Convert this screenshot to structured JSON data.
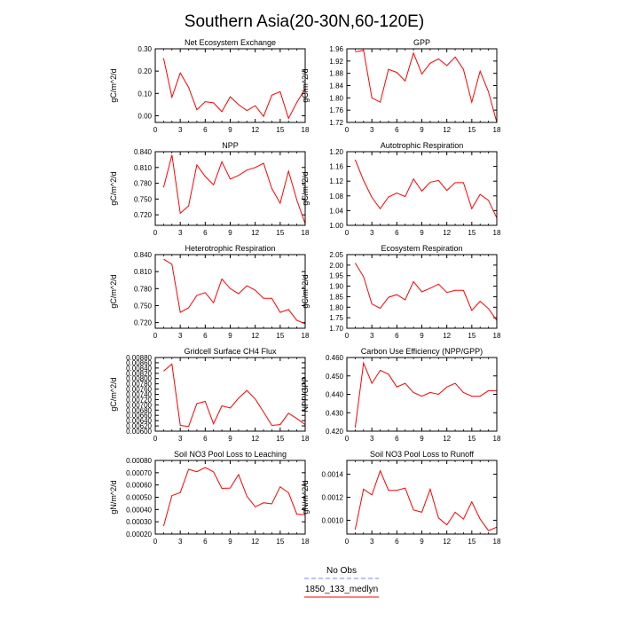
{
  "figure": {
    "title": "Southern Asia(20-30N,60-120E)",
    "legend": [
      {
        "label": "No Obs",
        "color": "#8080ff",
        "dash": true
      },
      {
        "label": "1850_133_medlyn",
        "color": "#ff0000",
        "dash": false
      }
    ]
  },
  "chart_data": [
    {
      "type": "line",
      "title": "Net Ecosystem Exchange",
      "ylabel": "gC/m^2/d",
      "xlim": [
        0,
        18
      ],
      "ylim": [
        -0.03,
        0.3
      ],
      "xticks": [
        0,
        3,
        6,
        9,
        12,
        15,
        18
      ],
      "yticks": [
        0.0,
        0.1,
        0.2,
        0.3
      ],
      "ytick_labels": [
        "0.00",
        "0.10",
        "0.20",
        "0.30"
      ],
      "x": [
        1,
        2,
        3,
        4,
        5,
        6,
        7,
        8,
        9,
        10,
        11,
        12,
        13,
        14,
        15,
        16,
        17,
        18
      ],
      "series": [
        {
          "color": "#ff0000",
          "values": [
            0.258,
            0.083,
            0.192,
            0.127,
            0.027,
            0.063,
            0.058,
            0.018,
            0.085,
            0.05,
            0.023,
            0.045,
            -0.003,
            0.092,
            0.108,
            -0.012,
            0.06,
            0.12
          ]
        }
      ]
    },
    {
      "type": "line",
      "title": "GPP",
      "ylabel": "gC/m^2/d",
      "xlim": [
        0,
        18
      ],
      "ylim": [
        1.72,
        1.96
      ],
      "xticks": [
        0,
        3,
        6,
        9,
        12,
        15,
        18
      ],
      "yticks": [
        1.72,
        1.76,
        1.8,
        1.84,
        1.88,
        1.92,
        1.96
      ],
      "ytick_labels": [
        "1.72",
        "1.76",
        "1.80",
        "1.84",
        "1.88",
        "1.92",
        "1.96"
      ],
      "x": [
        1,
        2,
        3,
        4,
        5,
        6,
        7,
        8,
        9,
        10,
        11,
        12,
        13,
        14,
        15,
        16,
        17,
        18
      ],
      "series": [
        {
          "color": "#ff0000",
          "values": [
            1.95,
            1.955,
            1.8,
            1.786,
            1.893,
            1.883,
            1.855,
            1.946,
            1.878,
            1.913,
            1.927,
            1.905,
            1.933,
            1.893,
            1.786,
            1.887,
            1.82,
            1.72
          ]
        }
      ]
    },
    {
      "type": "line",
      "title": "NPP",
      "ylabel": "gC/m^2/d",
      "xlim": [
        0,
        18
      ],
      "ylim": [
        0.7,
        0.84
      ],
      "xticks": [
        0,
        3,
        6,
        9,
        12,
        15,
        18
      ],
      "yticks": [
        0.72,
        0.75,
        0.78,
        0.81,
        0.84
      ],
      "ytick_labels": [
        "0.720",
        "0.750",
        "0.780",
        "0.810",
        "0.840"
      ],
      "x": [
        1,
        2,
        3,
        4,
        5,
        6,
        7,
        8,
        9,
        10,
        11,
        12,
        13,
        14,
        15,
        16,
        17,
        18
      ],
      "series": [
        {
          "color": "#ff0000",
          "values": [
            0.772,
            0.834,
            0.723,
            0.737,
            0.815,
            0.793,
            0.777,
            0.821,
            0.788,
            0.795,
            0.805,
            0.81,
            0.818,
            0.77,
            0.742,
            0.803,
            0.748,
            0.703
          ]
        }
      ]
    },
    {
      "type": "line",
      "title": "Autotrophic Respiration",
      "ylabel": "gC/m^2/d",
      "xlim": [
        0,
        18
      ],
      "ylim": [
        1.0,
        1.2
      ],
      "xticks": [
        0,
        3,
        6,
        9,
        12,
        15,
        18
      ],
      "yticks": [
        1.0,
        1.04,
        1.08,
        1.12,
        1.16,
        1.2
      ],
      "ytick_labels": [
        "1.00",
        "1.04",
        "1.08",
        "1.12",
        "1.16",
        "1.20"
      ],
      "x": [
        1,
        2,
        3,
        4,
        5,
        6,
        7,
        8,
        9,
        10,
        11,
        12,
        13,
        14,
        15,
        16,
        17,
        18
      ],
      "series": [
        {
          "color": "#ff0000",
          "values": [
            1.178,
            1.122,
            1.076,
            1.045,
            1.077,
            1.088,
            1.078,
            1.126,
            1.093,
            1.117,
            1.122,
            1.095,
            1.116,
            1.116,
            1.045,
            1.084,
            1.068,
            1.02
          ]
        }
      ]
    },
    {
      "type": "line",
      "title": "Heterotrophic Respiration",
      "ylabel": "gC/m^2/d",
      "xlim": [
        0,
        18
      ],
      "ylim": [
        0.71,
        0.84
      ],
      "xticks": [
        0,
        3,
        6,
        9,
        12,
        15,
        18
      ],
      "yticks": [
        0.72,
        0.75,
        0.78,
        0.81,
        0.84
      ],
      "ytick_labels": [
        "0.720",
        "0.750",
        "0.780",
        "0.810",
        "0.840"
      ],
      "x": [
        1,
        2,
        3,
        4,
        5,
        6,
        7,
        8,
        9,
        10,
        11,
        12,
        13,
        14,
        15,
        16,
        17,
        18
      ],
      "series": [
        {
          "color": "#ff0000",
          "values": [
            0.832,
            0.823,
            0.738,
            0.746,
            0.768,
            0.773,
            0.755,
            0.797,
            0.78,
            0.771,
            0.785,
            0.777,
            0.763,
            0.763,
            0.738,
            0.743,
            0.724,
            0.718
          ]
        }
      ]
    },
    {
      "type": "line",
      "title": "Ecosystem Respiration",
      "ylabel": "gC/m^2/d",
      "xlim": [
        0,
        18
      ],
      "ylim": [
        1.7,
        2.05
      ],
      "xticks": [
        0,
        3,
        6,
        9,
        12,
        15,
        18
      ],
      "yticks": [
        1.7,
        1.75,
        1.8,
        1.85,
        1.9,
        1.95,
        2.0,
        2.05
      ],
      "ytick_labels": [
        "1.70",
        "1.75",
        "1.80",
        "1.85",
        "1.90",
        "1.95",
        "2.00",
        "2.05"
      ],
      "x": [
        1,
        2,
        3,
        4,
        5,
        6,
        7,
        8,
        9,
        10,
        11,
        12,
        13,
        14,
        15,
        16,
        17,
        18
      ],
      "series": [
        {
          "color": "#ff0000",
          "values": [
            2.01,
            1.945,
            1.815,
            1.795,
            1.847,
            1.86,
            1.835,
            1.922,
            1.873,
            1.89,
            1.91,
            1.87,
            1.88,
            1.88,
            1.785,
            1.828,
            1.793,
            1.737
          ]
        }
      ]
    },
    {
      "type": "line",
      "title": "Gridcell Surface CH4 Flux",
      "ylabel": "gC/m^2/d",
      "xlim": [
        0,
        18
      ],
      "ylim": [
        0.006,
        0.0088
      ],
      "xticks": [
        0,
        3,
        6,
        9,
        12,
        15,
        18
      ],
      "yticks": [
        0.006,
        0.0062,
        0.0064,
        0.0066,
        0.0068,
        0.007,
        0.0072,
        0.0074,
        0.0076,
        0.0078,
        0.008,
        0.0082,
        0.0084,
        0.0086,
        0.0088
      ],
      "ytick_labels": [
        "0.00600",
        "0.00620",
        "0.00640",
        "0.00660",
        "0.00680",
        "0.00700",
        "0.00720",
        "0.00740",
        "0.00760",
        "0.00780",
        "0.00800",
        "0.00820",
        "0.00840",
        "0.00860",
        "0.00880"
      ],
      "x": [
        1,
        2,
        3,
        4,
        5,
        6,
        7,
        8,
        9,
        10,
        11,
        12,
        13,
        14,
        15,
        16,
        17,
        18
      ],
      "series": [
        {
          "color": "#ff0000",
          "values": [
            0.00828,
            0.00855,
            0.00622,
            0.00618,
            0.00705,
            0.00713,
            0.00628,
            0.00696,
            0.00688,
            0.00725,
            0.00755,
            0.00722,
            0.00673,
            0.00622,
            0.00625,
            0.00668,
            0.00648,
            0.00625
          ]
        }
      ]
    },
    {
      "type": "line",
      "title": "Carbon Use Efficiency (NPP/GPP)",
      "ylabel": "NPP/GPP",
      "xlim": [
        0,
        18
      ],
      "ylim": [
        0.42,
        0.46
      ],
      "xticks": [
        0,
        3,
        6,
        9,
        12,
        15,
        18
      ],
      "yticks": [
        0.42,
        0.43,
        0.44,
        0.45,
        0.46
      ],
      "ytick_labels": [
        "0.420",
        "0.430",
        "0.440",
        "0.450",
        "0.460"
      ],
      "x": [
        1,
        2,
        3,
        4,
        5,
        6,
        7,
        8,
        9,
        10,
        11,
        12,
        13,
        14,
        15,
        16,
        17,
        18
      ],
      "series": [
        {
          "color": "#ff0000",
          "values": [
            0.422,
            0.457,
            0.446,
            0.453,
            0.451,
            0.444,
            0.446,
            0.441,
            0.439,
            0.441,
            0.44,
            0.444,
            0.446,
            0.441,
            0.439,
            0.439,
            0.442,
            0.442
          ]
        }
      ]
    },
    {
      "type": "line",
      "title": "Soil NO3 Pool Loss to Leaching",
      "ylabel": "gN/m^2/d",
      "xlim": [
        0,
        18
      ],
      "ylim": [
        0.0002,
        0.0008
      ],
      "xticks": [
        0,
        3,
        6,
        9,
        12,
        15,
        18
      ],
      "yticks": [
        0.0002,
        0.0003,
        0.0004,
        0.0005,
        0.0006,
        0.0007,
        0.0008
      ],
      "ytick_labels": [
        "0.00020",
        "0.00030",
        "0.00040",
        "0.00050",
        "0.00060",
        "0.00070",
        "0.00080"
      ],
      "x": [
        1,
        2,
        3,
        4,
        5,
        6,
        7,
        8,
        9,
        10,
        11,
        12,
        13,
        14,
        15,
        16,
        17,
        18
      ],
      "series": [
        {
          "color": "#ff0000",
          "values": [
            0.000265,
            0.000513,
            0.000538,
            0.000728,
            0.000708,
            0.000743,
            0.000707,
            0.000572,
            0.000575,
            0.000685,
            0.000508,
            0.000422,
            0.000455,
            0.000446,
            0.000585,
            0.000537,
            0.000362,
            0.000358
          ]
        }
      ]
    },
    {
      "type": "line",
      "title": "Soil NO3 Pool Loss to Runoff",
      "ylabel": "gN/m^2/d",
      "xlim": [
        0,
        18
      ],
      "ylim": [
        0.00088,
        0.00152
      ],
      "xticks": [
        0,
        3,
        6,
        9,
        12,
        15,
        18
      ],
      "yticks": [
        0.001,
        0.0012,
        0.0014
      ],
      "ytick_labels": [
        "0.0010",
        "0.0012",
        "0.0014"
      ],
      "x": [
        1,
        2,
        3,
        4,
        5,
        6,
        7,
        8,
        9,
        10,
        11,
        12,
        13,
        14,
        15,
        16,
        17,
        18
      ],
      "series": [
        {
          "color": "#ff0000",
          "values": [
            0.00092,
            0.00127,
            0.00122,
            0.00143,
            0.00126,
            0.00126,
            0.00128,
            0.00109,
            0.00107,
            0.00127,
            0.00102,
            0.00096,
            0.00107,
            0.00101,
            0.00116,
            0.00101,
            0.00091,
            0.00094
          ]
        }
      ]
    }
  ]
}
